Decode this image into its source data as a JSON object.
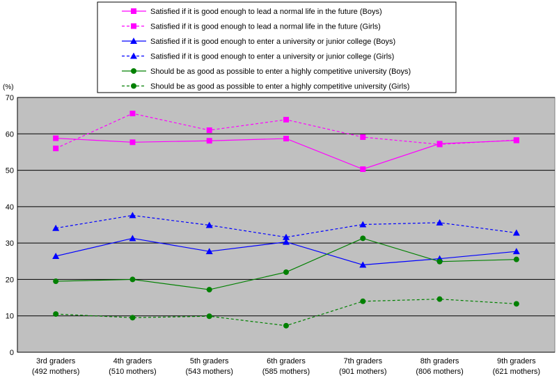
{
  "chart_data": {
    "type": "line",
    "ylabel": "(%)",
    "ylim": [
      0,
      70
    ],
    "yticks": [
      0,
      10,
      20,
      30,
      40,
      50,
      60,
      70
    ],
    "grid": "horizontal",
    "legend_position": "top",
    "plot_background": "#c0c0c0",
    "categories": [
      [
        "3rd graders",
        "(492 mothers)"
      ],
      [
        "4th graders",
        "(510 mothers)"
      ],
      [
        "5th graders",
        "(543 mothers)"
      ],
      [
        "6th graders",
        "(585 mothers)"
      ],
      [
        "7th graders",
        "(901 mothers)"
      ],
      [
        "8th graders",
        "(806 mothers)"
      ],
      [
        "9th graders",
        "(621 mothers)"
      ]
    ],
    "series": [
      {
        "name": "Satisfied if it is good enough to lead a normal life in the future (Boys)",
        "color": "#ff00ff",
        "marker": "square",
        "dash": false,
        "values": [
          58.8,
          57.7,
          58.1,
          58.7,
          50.3,
          57.3,
          58.2
        ]
      },
      {
        "name": "Satisfied if it is good enough to lead a normal life in the future (Girls)",
        "color": "#ff00ff",
        "marker": "square",
        "dash": true,
        "values": [
          56.0,
          65.6,
          61.0,
          63.9,
          59.1,
          57.1,
          58.3
        ]
      },
      {
        "name": "Satisfied if it is good enough to enter a university or junior college (Boys)",
        "color": "#0000ff",
        "marker": "triangle",
        "dash": false,
        "values": [
          26.4,
          31.3,
          27.7,
          30.3,
          24.0,
          25.7,
          27.7
        ]
      },
      {
        "name": "Satisfied if it is good enough to enter a university or junior college (Girls)",
        "color": "#0000ff",
        "marker": "triangle",
        "dash": true,
        "values": [
          34.1,
          37.6,
          34.9,
          31.6,
          35.1,
          35.6,
          32.8
        ]
      },
      {
        "name": "Should be as good as possible to enter a highly competitive university (Boys)",
        "color": "#008000",
        "marker": "circle",
        "dash": false,
        "values": [
          19.5,
          20.0,
          17.2,
          22.0,
          31.3,
          24.9,
          25.5
        ]
      },
      {
        "name": "Should be as good as possible to enter a highly competitive university (Girls)",
        "color": "#008000",
        "marker": "circle",
        "dash": true,
        "values": [
          10.5,
          9.5,
          9.9,
          7.3,
          14.0,
          14.6,
          13.3
        ]
      }
    ]
  }
}
